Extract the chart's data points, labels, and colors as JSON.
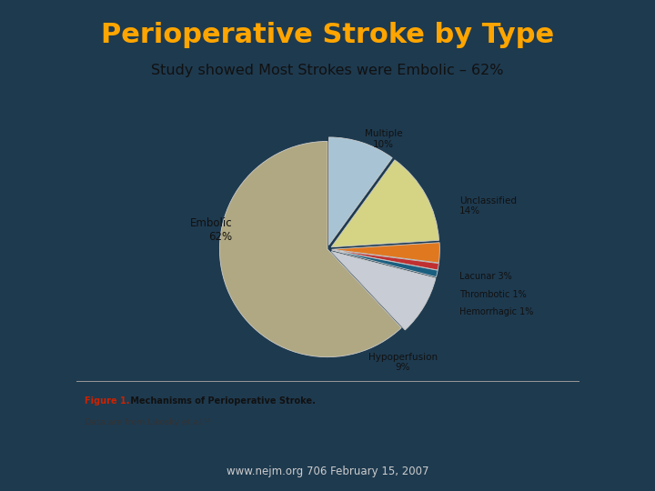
{
  "title": "Perioperative Stroke by Type",
  "subtitle": "Study showed Most Strokes were Embolic – 62%",
  "footer": "www.nejm.org 706 February 15, 2007",
  "figure_caption_red": "Figure 1.",
  "figure_caption_bold": " Mechanisms of Perioperative Stroke.",
  "figure_caption_normal": "Data are from Likosky et al.¹²",
  "bg_color": "#1e3a4f",
  "title_color": "#FFA500",
  "subtitle_bg": "#FFFFA0",
  "subtitle_text_color": "#111111",
  "footer_color": "#cccccc",
  "pie_labels": [
    "Embolic",
    "Multiple",
    "Unclassified",
    "Lacunar",
    "Thrombotic",
    "Hemorrhagic",
    "Hypoperfusion"
  ],
  "pie_values": [
    62,
    10,
    14,
    3,
    1,
    1,
    9
  ],
  "pie_colors": [
    "#b0a882",
    "#a8c4d4",
    "#d4d484",
    "#e07820",
    "#c03030",
    "#1a5f80",
    "#c8ccd4"
  ],
  "explode": [
    0.0,
    0.04,
    0.04,
    0.04,
    0.04,
    0.04,
    0.04
  ],
  "white_box_bg": "#f5f2ee",
  "chart_inner_bg": "#ffffff"
}
